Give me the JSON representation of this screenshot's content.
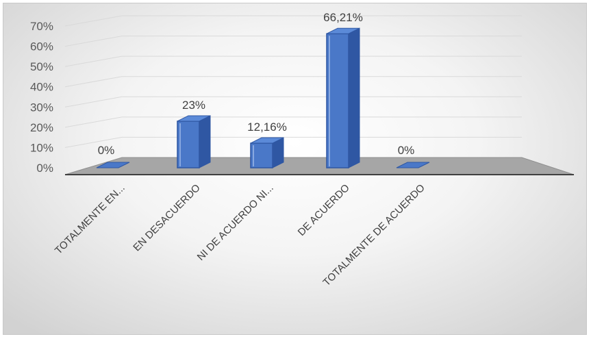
{
  "chart_data": {
    "type": "bar",
    "title": "",
    "categories": [
      "TOTALMENTE EN...",
      "EN DESACUERDO",
      "NI DE ACUERDO NI...",
      "DE ACUERDO",
      "TOTALMENTE DE ACUERDO"
    ],
    "values": [
      0,
      23,
      12.16,
      66.21,
      0
    ],
    "data_labels": [
      "0%",
      "23%",
      "12,16%",
      "66,21%",
      "0%"
    ],
    "y_ticks": [
      "0%",
      "10%",
      "20%",
      "30%",
      "40%",
      "50%",
      "60%",
      "70%"
    ],
    "ylim": [
      0,
      70
    ],
    "grid": true,
    "legend": "none",
    "style": "3d-column",
    "colors": {
      "bar_front": "#4a78c8",
      "bar_side": "#2f57a3",
      "bar_top": "#5b8ad8",
      "floor": "#a6a6a6",
      "gridline": "#d9d9d9"
    }
  }
}
